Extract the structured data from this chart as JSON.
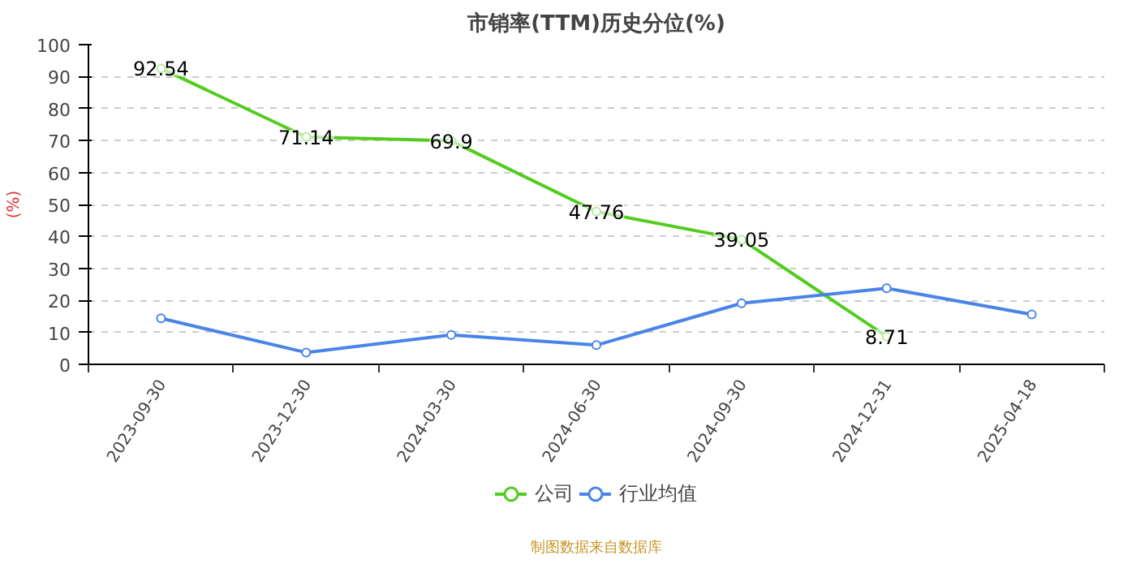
{
  "chart_data": {
    "type": "line",
    "title": "市销率(TTM)历史分位(%)",
    "ylabel": "(%)",
    "categories": [
      "2023-09-30",
      "2023-12-30",
      "2024-03-30",
      "2024-06-30",
      "2024-09-30",
      "2024-12-31",
      "2025-04-18"
    ],
    "series": [
      {
        "name": "公司",
        "color": "#52cc1f",
        "values": [
          92.54,
          71.14,
          69.9,
          47.76,
          39.05,
          8.71,
          null
        ],
        "value_labels": [
          "92.54",
          "71.14",
          "69.9",
          "47.76",
          "39.05",
          "8.71",
          null
        ]
      },
      {
        "name": "行业均值",
        "color": "#4a84e8",
        "values": [
          14.4,
          3.7,
          9.2,
          6.0,
          19.1,
          23.8,
          15.6
        ]
      }
    ],
    "ylim": [
      0,
      100
    ],
    "yticks": [
      0,
      10,
      20,
      30,
      40,
      50,
      60,
      70,
      80,
      90,
      100
    ],
    "grid": "y",
    "legend": "bottom",
    "marker": "circle",
    "line_style": "solid",
    "annotations": [
      "制图数据来自数据库"
    ]
  }
}
